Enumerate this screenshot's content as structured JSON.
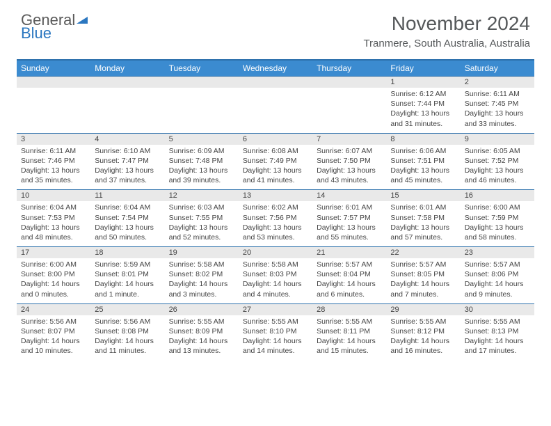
{
  "logo": {
    "word1": "General",
    "word2": "Blue"
  },
  "title": "November 2024",
  "location": "Tranmere, South Australia, Australia",
  "colors": {
    "header_bg": "#3b8bd0",
    "header_text": "#ffffff",
    "rule": "#2b6fab",
    "daynum_bg": "#e9e9e9",
    "body_text": "#444444",
    "logo_gray": "#5a5a5a",
    "logo_blue": "#2b77c0"
  },
  "day_headers": [
    "Sunday",
    "Monday",
    "Tuesday",
    "Wednesday",
    "Thursday",
    "Friday",
    "Saturday"
  ],
  "weeks": [
    [
      {
        "n": "",
        "sr": "",
        "ss": "",
        "dl": ""
      },
      {
        "n": "",
        "sr": "",
        "ss": "",
        "dl": ""
      },
      {
        "n": "",
        "sr": "",
        "ss": "",
        "dl": ""
      },
      {
        "n": "",
        "sr": "",
        "ss": "",
        "dl": ""
      },
      {
        "n": "",
        "sr": "",
        "ss": "",
        "dl": ""
      },
      {
        "n": "1",
        "sr": "Sunrise: 6:12 AM",
        "ss": "Sunset: 7:44 PM",
        "dl": "Daylight: 13 hours and 31 minutes."
      },
      {
        "n": "2",
        "sr": "Sunrise: 6:11 AM",
        "ss": "Sunset: 7:45 PM",
        "dl": "Daylight: 13 hours and 33 minutes."
      }
    ],
    [
      {
        "n": "3",
        "sr": "Sunrise: 6:11 AM",
        "ss": "Sunset: 7:46 PM",
        "dl": "Daylight: 13 hours and 35 minutes."
      },
      {
        "n": "4",
        "sr": "Sunrise: 6:10 AM",
        "ss": "Sunset: 7:47 PM",
        "dl": "Daylight: 13 hours and 37 minutes."
      },
      {
        "n": "5",
        "sr": "Sunrise: 6:09 AM",
        "ss": "Sunset: 7:48 PM",
        "dl": "Daylight: 13 hours and 39 minutes."
      },
      {
        "n": "6",
        "sr": "Sunrise: 6:08 AM",
        "ss": "Sunset: 7:49 PM",
        "dl": "Daylight: 13 hours and 41 minutes."
      },
      {
        "n": "7",
        "sr": "Sunrise: 6:07 AM",
        "ss": "Sunset: 7:50 PM",
        "dl": "Daylight: 13 hours and 43 minutes."
      },
      {
        "n": "8",
        "sr": "Sunrise: 6:06 AM",
        "ss": "Sunset: 7:51 PM",
        "dl": "Daylight: 13 hours and 45 minutes."
      },
      {
        "n": "9",
        "sr": "Sunrise: 6:05 AM",
        "ss": "Sunset: 7:52 PM",
        "dl": "Daylight: 13 hours and 46 minutes."
      }
    ],
    [
      {
        "n": "10",
        "sr": "Sunrise: 6:04 AM",
        "ss": "Sunset: 7:53 PM",
        "dl": "Daylight: 13 hours and 48 minutes."
      },
      {
        "n": "11",
        "sr": "Sunrise: 6:04 AM",
        "ss": "Sunset: 7:54 PM",
        "dl": "Daylight: 13 hours and 50 minutes."
      },
      {
        "n": "12",
        "sr": "Sunrise: 6:03 AM",
        "ss": "Sunset: 7:55 PM",
        "dl": "Daylight: 13 hours and 52 minutes."
      },
      {
        "n": "13",
        "sr": "Sunrise: 6:02 AM",
        "ss": "Sunset: 7:56 PM",
        "dl": "Daylight: 13 hours and 53 minutes."
      },
      {
        "n": "14",
        "sr": "Sunrise: 6:01 AM",
        "ss": "Sunset: 7:57 PM",
        "dl": "Daylight: 13 hours and 55 minutes."
      },
      {
        "n": "15",
        "sr": "Sunrise: 6:01 AM",
        "ss": "Sunset: 7:58 PM",
        "dl": "Daylight: 13 hours and 57 minutes."
      },
      {
        "n": "16",
        "sr": "Sunrise: 6:00 AM",
        "ss": "Sunset: 7:59 PM",
        "dl": "Daylight: 13 hours and 58 minutes."
      }
    ],
    [
      {
        "n": "17",
        "sr": "Sunrise: 6:00 AM",
        "ss": "Sunset: 8:00 PM",
        "dl": "Daylight: 14 hours and 0 minutes."
      },
      {
        "n": "18",
        "sr": "Sunrise: 5:59 AM",
        "ss": "Sunset: 8:01 PM",
        "dl": "Daylight: 14 hours and 1 minute."
      },
      {
        "n": "19",
        "sr": "Sunrise: 5:58 AM",
        "ss": "Sunset: 8:02 PM",
        "dl": "Daylight: 14 hours and 3 minutes."
      },
      {
        "n": "20",
        "sr": "Sunrise: 5:58 AM",
        "ss": "Sunset: 8:03 PM",
        "dl": "Daylight: 14 hours and 4 minutes."
      },
      {
        "n": "21",
        "sr": "Sunrise: 5:57 AM",
        "ss": "Sunset: 8:04 PM",
        "dl": "Daylight: 14 hours and 6 minutes."
      },
      {
        "n": "22",
        "sr": "Sunrise: 5:57 AM",
        "ss": "Sunset: 8:05 PM",
        "dl": "Daylight: 14 hours and 7 minutes."
      },
      {
        "n": "23",
        "sr": "Sunrise: 5:57 AM",
        "ss": "Sunset: 8:06 PM",
        "dl": "Daylight: 14 hours and 9 minutes."
      }
    ],
    [
      {
        "n": "24",
        "sr": "Sunrise: 5:56 AM",
        "ss": "Sunset: 8:07 PM",
        "dl": "Daylight: 14 hours and 10 minutes."
      },
      {
        "n": "25",
        "sr": "Sunrise: 5:56 AM",
        "ss": "Sunset: 8:08 PM",
        "dl": "Daylight: 14 hours and 11 minutes."
      },
      {
        "n": "26",
        "sr": "Sunrise: 5:55 AM",
        "ss": "Sunset: 8:09 PM",
        "dl": "Daylight: 14 hours and 13 minutes."
      },
      {
        "n": "27",
        "sr": "Sunrise: 5:55 AM",
        "ss": "Sunset: 8:10 PM",
        "dl": "Daylight: 14 hours and 14 minutes."
      },
      {
        "n": "28",
        "sr": "Sunrise: 5:55 AM",
        "ss": "Sunset: 8:11 PM",
        "dl": "Daylight: 14 hours and 15 minutes."
      },
      {
        "n": "29",
        "sr": "Sunrise: 5:55 AM",
        "ss": "Sunset: 8:12 PM",
        "dl": "Daylight: 14 hours and 16 minutes."
      },
      {
        "n": "30",
        "sr": "Sunrise: 5:55 AM",
        "ss": "Sunset: 8:13 PM",
        "dl": "Daylight: 14 hours and 17 minutes."
      }
    ]
  ]
}
